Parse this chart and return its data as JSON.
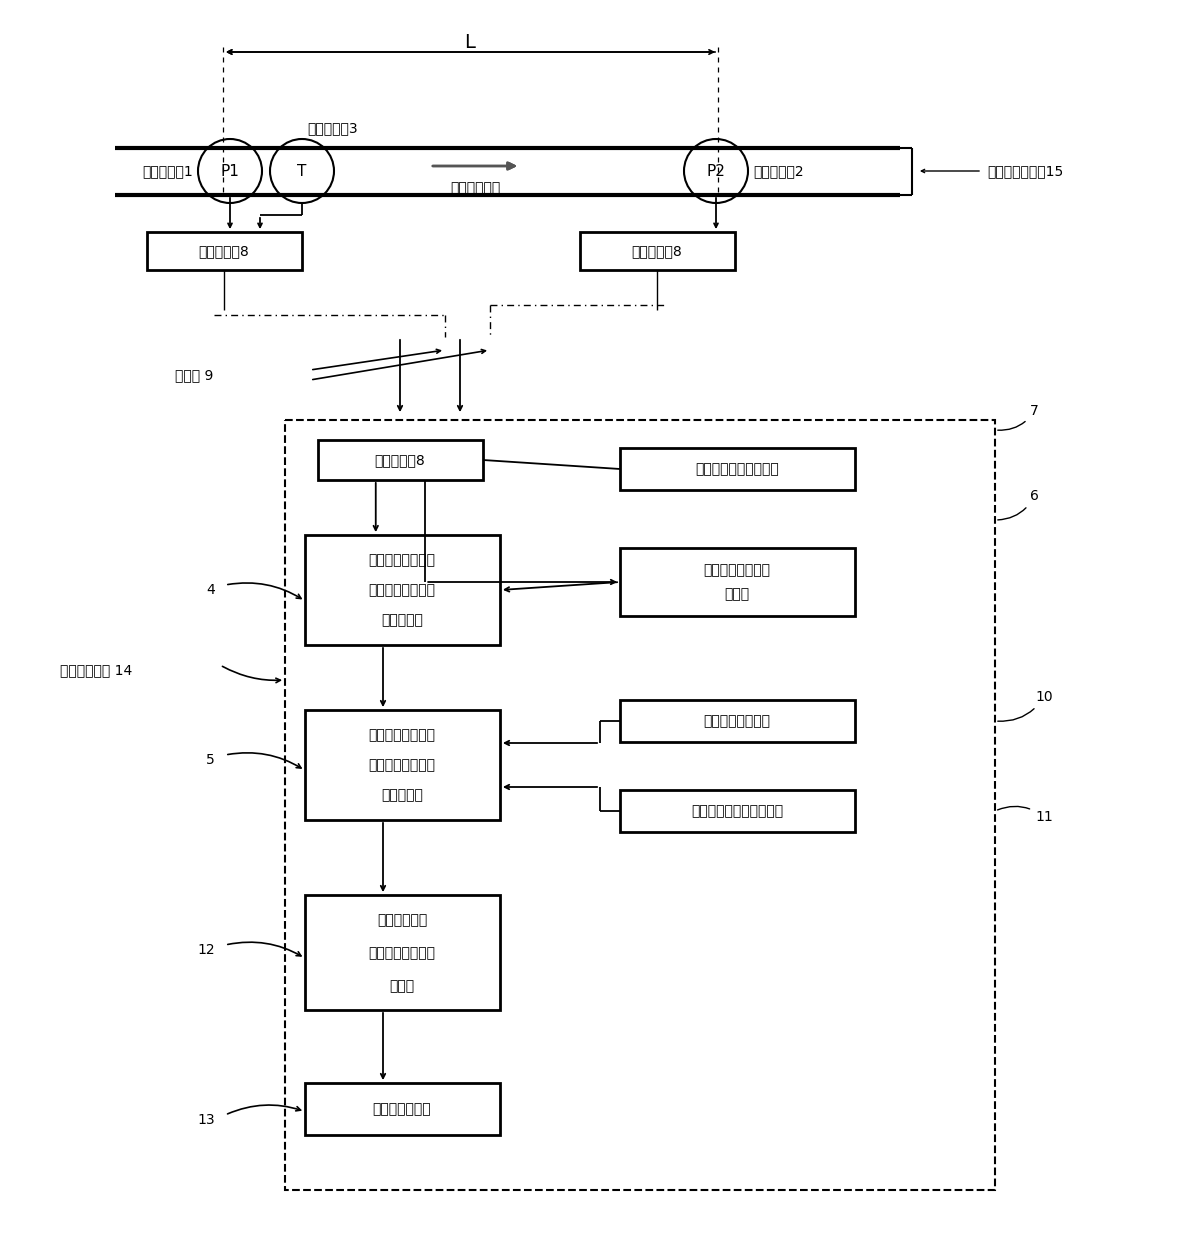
{
  "bg_color": "#ffffff",
  "line_color": "#000000",
  "L_label": "L",
  "upper_pressure_label": "上流圧力計1",
  "lower_pressure_label": "下流圧力計2",
  "temp_label": "液体温度計3",
  "flow_dir_label": "液体流れ方向",
  "pipe_label": "一様断面の管15",
  "signal_box_label": "信号伝送逆8",
  "transmission_label": "伝送路 9",
  "flow_device_label": "流量演算装置 14",
  "signal_box2_label": "信号伝送逆8",
  "liquid_param_label": "液体パラメータ設定部",
  "pipe_dim_line1": "管寸法パラメータ",
  "pipe_dim_line2": "設定部",
  "pipe_rough_label": "管相対粗さ設定部",
  "critical_re_label": "臨界レイノルズ数設定部",
  "box1_line1": "第一管摩擦係数、",
  "box1_line2": "レイノルズ数関数",
  "box1_line3": "係数演算部",
  "box2_line1": "第二管摩擦係数、",
  "box2_line2": "レイノルズ数関数",
  "box2_line3": "係数演算部",
  "box3_line1": "連立管摩擦係",
  "box3_line2": "数、レイノルズ数",
  "box3_line3": "演算部",
  "box4_label": "流量演算表示部",
  "num4_label": "4",
  "num5_label": "5",
  "num6_label": "6",
  "num7_label": "7",
  "num10_label": "10",
  "num11_label": "11",
  "num12_label": "12",
  "num13_label": "13"
}
